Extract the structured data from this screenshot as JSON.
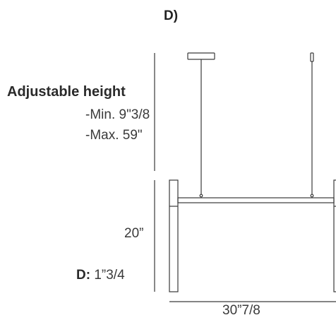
{
  "variant_label": "D)",
  "adjustable_height": {
    "title": "Adjustable height",
    "min": "-Min. 9\"3/8",
    "max": "-Max. 59\""
  },
  "fixture_height": "20”",
  "diameter": {
    "key": "D:",
    "value": "1”3/4"
  },
  "width_dimension": "30”7/8",
  "colors": {
    "line": "#3a3a3a",
    "text": "#3a3a3a"
  },
  "icons": {
    "canopy": "ceiling-canopy-icon",
    "suspension": "suspension-cable-icon",
    "fixture": "pendant-fixture-icon"
  }
}
